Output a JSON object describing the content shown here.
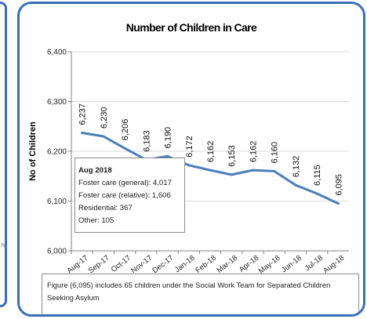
{
  "chart_data": {
    "type": "line",
    "title": "Number of Children in Care",
    "xlabel": "",
    "ylabel": "No of Children",
    "categories": [
      "Aug-17",
      "Sep-17",
      "Oct-17",
      "Nov-17",
      "Dec-17",
      "Jan-18",
      "Feb-18",
      "Mar-18",
      "Apr-18",
      "May-18",
      "Jun-18",
      "Jul-18",
      "Aug-18"
    ],
    "series": [
      {
        "values": [
          6237,
          6230,
          6206,
          6183,
          6190,
          6172,
          6162,
          6153,
          6162,
          6160,
          6132,
          6115,
          6095
        ],
        "labels": [
          "6,237",
          "6,230",
          "6,206",
          "6,183",
          "6,190",
          "6,172",
          "6,162",
          "6,153",
          "6,162",
          "6,160",
          "6,132",
          "6,115",
          "6,095"
        ]
      }
    ],
    "ylim": [
      6000,
      6400
    ],
    "yticks": [
      6000,
      6100,
      6200,
      6300,
      6400
    ],
    "ytick_labels": [
      "6,000",
      "6,100",
      "6,200",
      "6,300",
      "6,400"
    ],
    "line_color": "#4a7ebb",
    "grid": true
  },
  "breakdown": {
    "title": "Aug 2018",
    "items": [
      "Foster care (general): 4,017",
      "Foster care (relative): 1,606",
      "Residential: 367",
      "Other: 105"
    ]
  },
  "note": "Figure (6,095) includes 65 children under the Social Work Team for Separated Children Seeking Asylum",
  "colors": {
    "border": "#3a6fb6",
    "grid": "#d9d9d9",
    "line": "#4a7ebb"
  },
  "left_panel": {
    "mark": "h"
  }
}
